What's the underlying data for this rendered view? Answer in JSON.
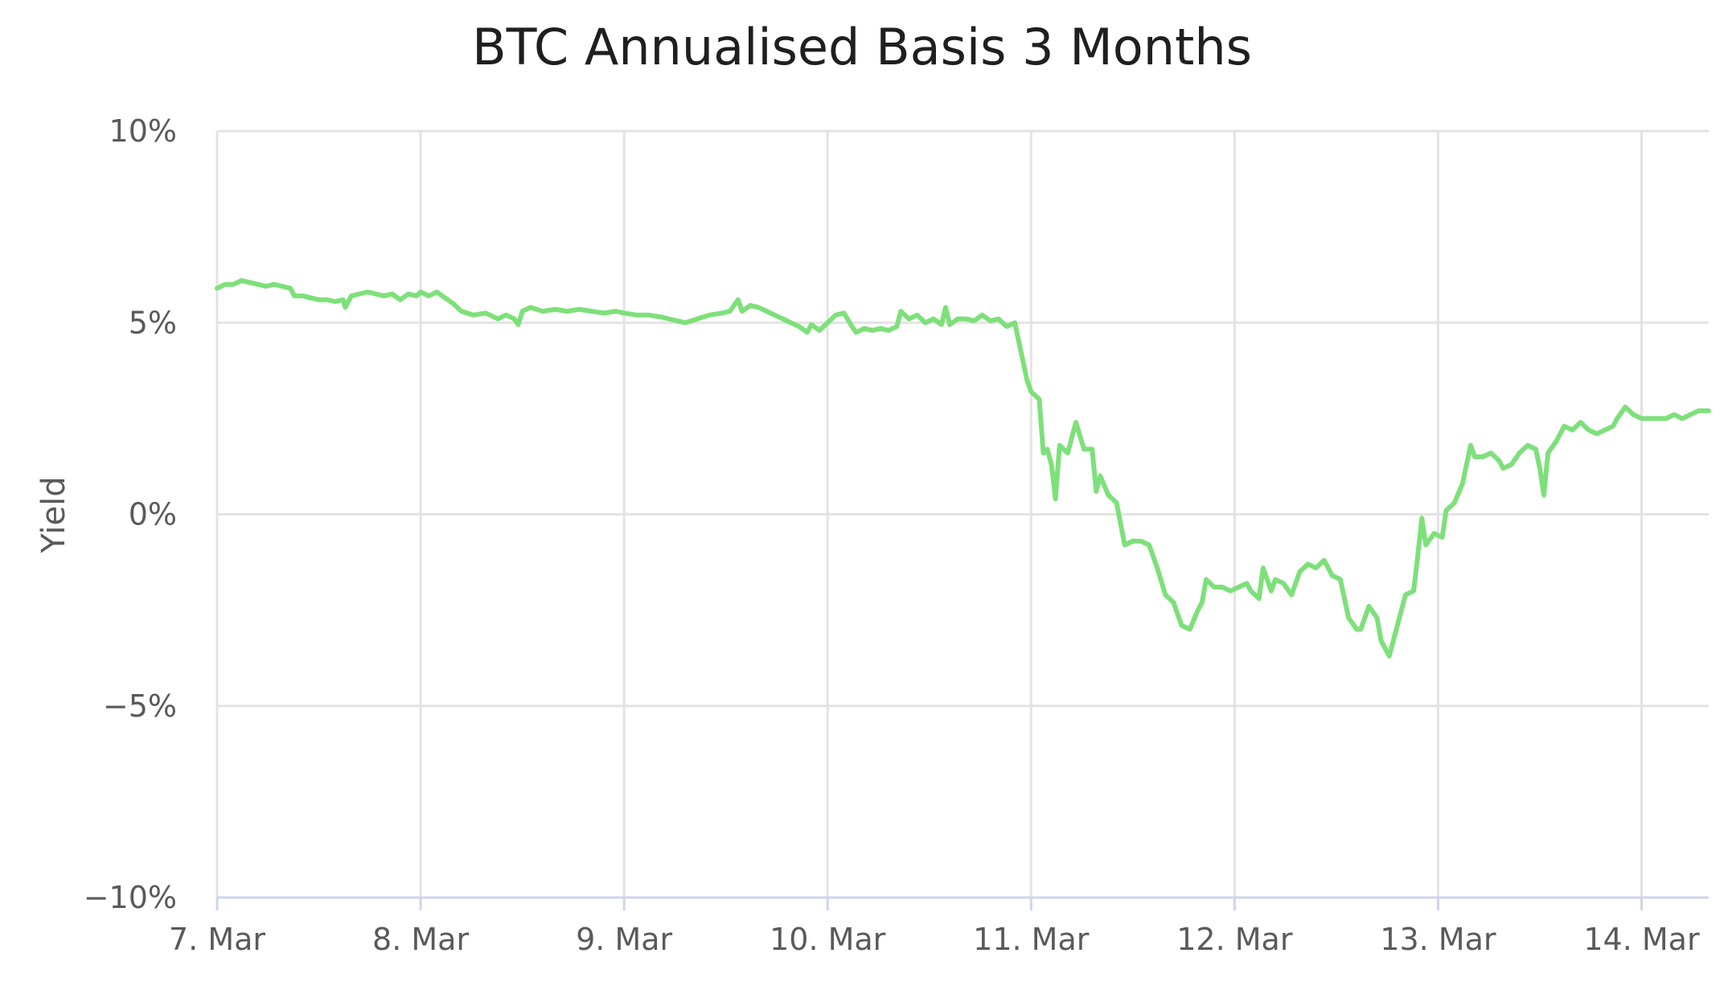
{
  "chart_data": {
    "type": "line",
    "title": "BTC Annualised Basis 3 Months",
    "ylabel": "Yield",
    "xlabel": "",
    "ylim": [
      -10,
      10
    ],
    "xlim": [
      0,
      7.33
    ],
    "x_ticks": [
      {
        "value": 0,
        "label": "7. Mar"
      },
      {
        "value": 1,
        "label": "8. Mar"
      },
      {
        "value": 2,
        "label": "9. Mar"
      },
      {
        "value": 3,
        "label": "10. Mar"
      },
      {
        "value": 4,
        "label": "11. Mar"
      },
      {
        "value": 5,
        "label": "12. Mar"
      },
      {
        "value": 6,
        "label": "13. Mar"
      },
      {
        "value": 7,
        "label": "14. Mar"
      }
    ],
    "y_ticks": [
      {
        "value": 10,
        "label": "10%"
      },
      {
        "value": 5,
        "label": "5%"
      },
      {
        "value": 0,
        "label": "0%"
      },
      {
        "value": -5,
        "label": "−5%"
      },
      {
        "value": -10,
        "label": "−10%"
      }
    ],
    "grid": true,
    "legend": "none",
    "series": [
      {
        "color": "#7ee07a",
        "points": [
          [
            0.0,
            5.9
          ],
          [
            0.04,
            6.0
          ],
          [
            0.08,
            6.0
          ],
          [
            0.12,
            6.1
          ],
          [
            0.16,
            6.05
          ],
          [
            0.2,
            6.0
          ],
          [
            0.24,
            5.95
          ],
          [
            0.28,
            6.0
          ],
          [
            0.32,
            5.95
          ],
          [
            0.36,
            5.9
          ],
          [
            0.38,
            5.7
          ],
          [
            0.42,
            5.7
          ],
          [
            0.46,
            5.65
          ],
          [
            0.5,
            5.6
          ],
          [
            0.54,
            5.6
          ],
          [
            0.58,
            5.55
          ],
          [
            0.62,
            5.6
          ],
          [
            0.63,
            5.4
          ],
          [
            0.66,
            5.7
          ],
          [
            0.7,
            5.75
          ],
          [
            0.74,
            5.8
          ],
          [
            0.78,
            5.75
          ],
          [
            0.82,
            5.7
          ],
          [
            0.86,
            5.75
          ],
          [
            0.9,
            5.6
          ],
          [
            0.94,
            5.75
          ],
          [
            0.98,
            5.7
          ],
          [
            1.0,
            5.8
          ],
          [
            1.04,
            5.7
          ],
          [
            1.08,
            5.8
          ],
          [
            1.12,
            5.65
          ],
          [
            1.16,
            5.5
          ],
          [
            1.2,
            5.3
          ],
          [
            1.26,
            5.2
          ],
          [
            1.32,
            5.25
          ],
          [
            1.38,
            5.1
          ],
          [
            1.42,
            5.2
          ],
          [
            1.46,
            5.1
          ],
          [
            1.48,
            4.95
          ],
          [
            1.5,
            5.3
          ],
          [
            1.54,
            5.4
          ],
          [
            1.6,
            5.3
          ],
          [
            1.66,
            5.35
          ],
          [
            1.72,
            5.3
          ],
          [
            1.78,
            5.35
          ],
          [
            1.84,
            5.3
          ],
          [
            1.9,
            5.25
          ],
          [
            1.96,
            5.3
          ],
          [
            2.0,
            5.25
          ],
          [
            2.06,
            5.2
          ],
          [
            2.12,
            5.2
          ],
          [
            2.18,
            5.15
          ],
          [
            2.22,
            5.1
          ],
          [
            2.26,
            5.05
          ],
          [
            2.3,
            5.0
          ],
          [
            2.36,
            5.1
          ],
          [
            2.42,
            5.2
          ],
          [
            2.48,
            5.25
          ],
          [
            2.52,
            5.3
          ],
          [
            2.56,
            5.6
          ],
          [
            2.58,
            5.3
          ],
          [
            2.62,
            5.45
          ],
          [
            2.66,
            5.4
          ],
          [
            2.7,
            5.3
          ],
          [
            2.74,
            5.2
          ],
          [
            2.78,
            5.1
          ],
          [
            2.82,
            5.0
          ],
          [
            2.86,
            4.9
          ],
          [
            2.9,
            4.75
          ],
          [
            2.92,
            4.95
          ],
          [
            2.96,
            4.8
          ],
          [
            3.0,
            5.0
          ],
          [
            3.04,
            5.2
          ],
          [
            3.08,
            5.25
          ],
          [
            3.12,
            4.9
          ],
          [
            3.14,
            4.75
          ],
          [
            3.18,
            4.85
          ],
          [
            3.22,
            4.8
          ],
          [
            3.26,
            4.85
          ],
          [
            3.3,
            4.8
          ],
          [
            3.34,
            4.9
          ],
          [
            3.36,
            5.3
          ],
          [
            3.4,
            5.1
          ],
          [
            3.44,
            5.2
          ],
          [
            3.48,
            5.0
          ],
          [
            3.52,
            5.1
          ],
          [
            3.56,
            4.95
          ],
          [
            3.58,
            5.4
          ],
          [
            3.6,
            4.95
          ],
          [
            3.64,
            5.1
          ],
          [
            3.68,
            5.1
          ],
          [
            3.72,
            5.05
          ],
          [
            3.76,
            5.2
          ],
          [
            3.8,
            5.05
          ],
          [
            3.84,
            5.1
          ],
          [
            3.88,
            4.9
          ],
          [
            3.92,
            5.0
          ],
          [
            3.94,
            4.5
          ],
          [
            3.96,
            4.0
          ],
          [
            3.98,
            3.5
          ],
          [
            4.0,
            3.2
          ],
          [
            4.04,
            3.0
          ],
          [
            4.06,
            1.6
          ],
          [
            4.08,
            1.7
          ],
          [
            4.1,
            1.3
          ],
          [
            4.12,
            0.4
          ],
          [
            4.14,
            1.8
          ],
          [
            4.18,
            1.6
          ],
          [
            4.22,
            2.4
          ],
          [
            4.26,
            1.7
          ],
          [
            4.3,
            1.7
          ],
          [
            4.32,
            0.6
          ],
          [
            4.34,
            1.0
          ],
          [
            4.38,
            0.5
          ],
          [
            4.42,
            0.3
          ],
          [
            4.46,
            -0.8
          ],
          [
            4.5,
            -0.7
          ],
          [
            4.54,
            -0.7
          ],
          [
            4.58,
            -0.8
          ],
          [
            4.62,
            -1.4
          ],
          [
            4.66,
            -2.1
          ],
          [
            4.7,
            -2.3
          ],
          [
            4.74,
            -2.9
          ],
          [
            4.78,
            -3.0
          ],
          [
            4.82,
            -2.5
          ],
          [
            4.84,
            -2.3
          ],
          [
            4.86,
            -1.7
          ],
          [
            4.9,
            -1.9
          ],
          [
            4.94,
            -1.9
          ],
          [
            4.98,
            -2.0
          ],
          [
            5.02,
            -1.9
          ],
          [
            5.06,
            -1.8
          ],
          [
            5.08,
            -2.0
          ],
          [
            5.12,
            -2.2
          ],
          [
            5.14,
            -1.4
          ],
          [
            5.18,
            -2.0
          ],
          [
            5.2,
            -1.7
          ],
          [
            5.24,
            -1.8
          ],
          [
            5.28,
            -2.1
          ],
          [
            5.32,
            -1.5
          ],
          [
            5.36,
            -1.3
          ],
          [
            5.4,
            -1.4
          ],
          [
            5.44,
            -1.2
          ],
          [
            5.48,
            -1.6
          ],
          [
            5.52,
            -1.7
          ],
          [
            5.56,
            -2.7
          ],
          [
            5.6,
            -3.0
          ],
          [
            5.62,
            -3.0
          ],
          [
            5.66,
            -2.4
          ],
          [
            5.7,
            -2.7
          ],
          [
            5.72,
            -3.3
          ],
          [
            5.76,
            -3.7
          ],
          [
            5.8,
            -2.9
          ],
          [
            5.84,
            -2.1
          ],
          [
            5.88,
            -2.0
          ],
          [
            5.9,
            -1.1
          ],
          [
            5.92,
            -0.1
          ],
          [
            5.94,
            -0.8
          ],
          [
            5.98,
            -0.5
          ],
          [
            6.02,
            -0.6
          ],
          [
            6.04,
            0.1
          ],
          [
            6.08,
            0.3
          ],
          [
            6.12,
            0.8
          ],
          [
            6.14,
            1.3
          ],
          [
            6.16,
            1.8
          ],
          [
            6.18,
            1.5
          ],
          [
            6.22,
            1.5
          ],
          [
            6.26,
            1.6
          ],
          [
            6.3,
            1.4
          ],
          [
            6.32,
            1.2
          ],
          [
            6.36,
            1.3
          ],
          [
            6.4,
            1.6
          ],
          [
            6.44,
            1.8
          ],
          [
            6.48,
            1.7
          ],
          [
            6.5,
            1.2
          ],
          [
            6.52,
            0.5
          ],
          [
            6.54,
            1.6
          ],
          [
            6.58,
            1.9
          ],
          [
            6.62,
            2.3
          ],
          [
            6.66,
            2.2
          ],
          [
            6.7,
            2.4
          ],
          [
            6.74,
            2.2
          ],
          [
            6.78,
            2.1
          ],
          [
            6.82,
            2.2
          ],
          [
            6.86,
            2.3
          ],
          [
            6.88,
            2.5
          ],
          [
            6.92,
            2.8
          ],
          [
            6.96,
            2.6
          ],
          [
            7.0,
            2.5
          ],
          [
            7.04,
            2.5
          ],
          [
            7.08,
            2.5
          ],
          [
            7.12,
            2.5
          ],
          [
            7.16,
            2.6
          ],
          [
            7.2,
            2.5
          ],
          [
            7.24,
            2.6
          ],
          [
            7.28,
            2.7
          ],
          [
            7.33,
            2.7
          ]
        ]
      }
    ]
  }
}
